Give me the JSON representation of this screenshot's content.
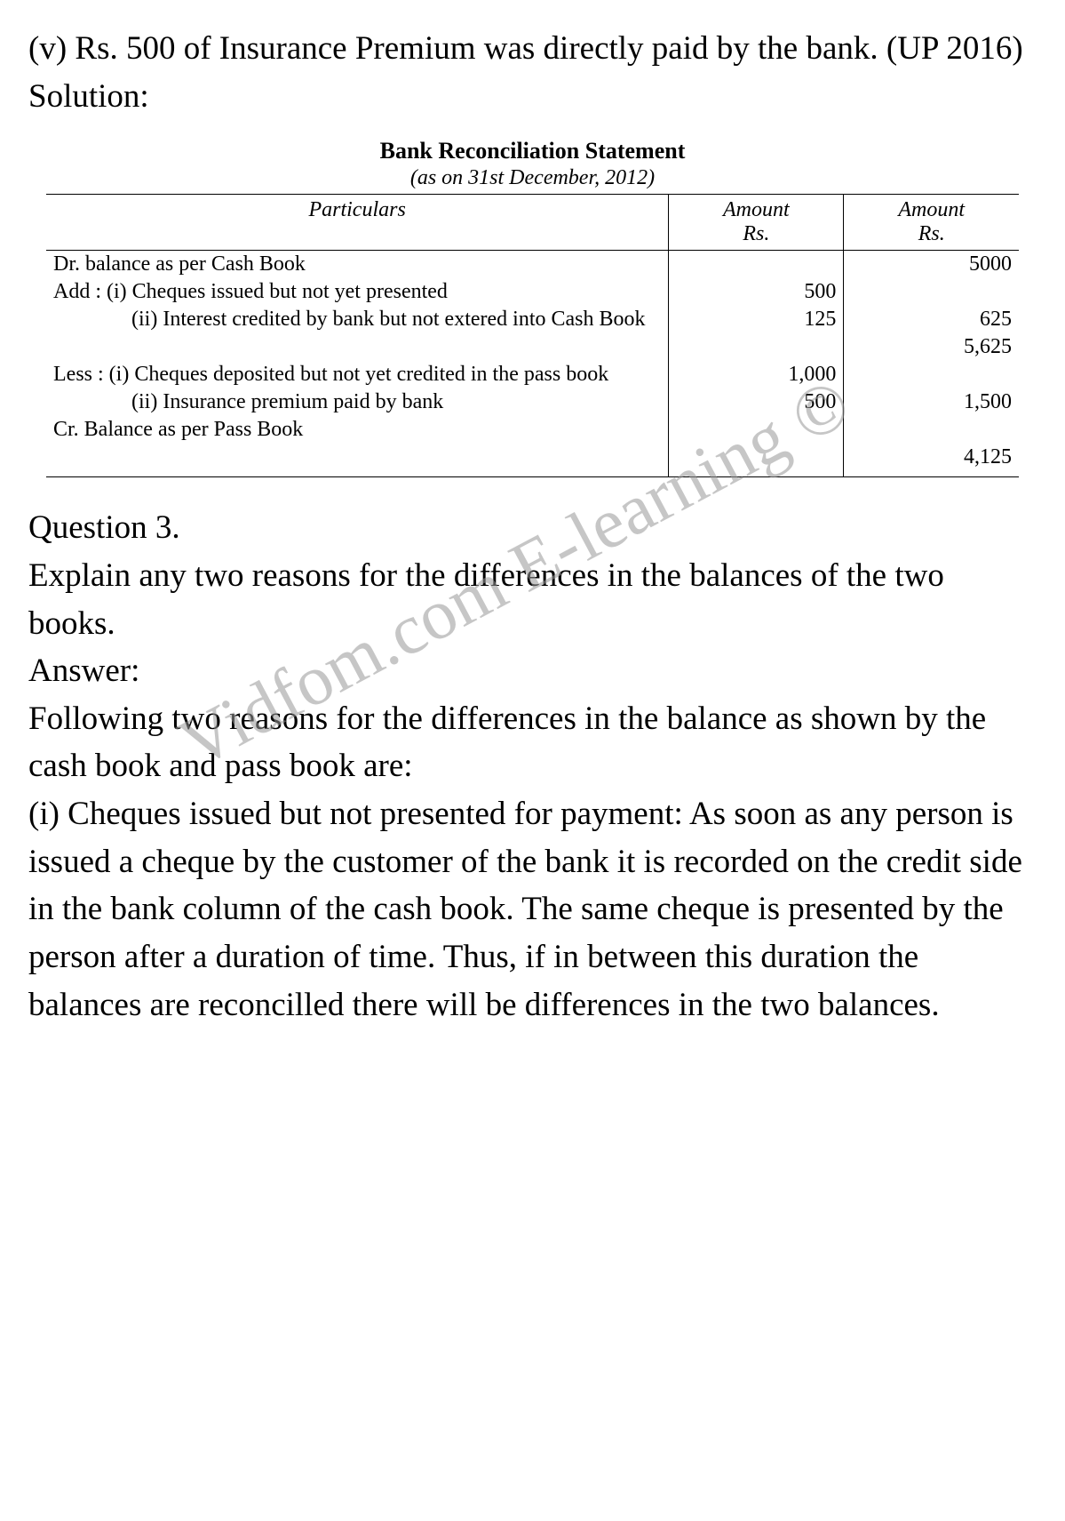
{
  "intro": {
    "item_v": "(v) Rs. 500 of Insurance Premium was directly paid by the bank. (UP 2016)",
    "solution_label": "Solution:"
  },
  "statement": {
    "title": "Bank Reconciliation Statement",
    "subtitle": "(as on 31st December, 2012)",
    "headers": {
      "particulars": "Particulars",
      "amount1_line1": "Amount",
      "amount1_line2": "Rs.",
      "amount2_line1": "Amount",
      "amount2_line2": "Rs."
    },
    "rows": [
      {
        "label": "Dr. balance as per Cash Book",
        "a1": "",
        "a2": "5000",
        "indent": 0
      },
      {
        "label": "Add :  (i) Cheques issued but not yet presented",
        "a1": "500",
        "a2": "",
        "indent": 0
      },
      {
        "label": "(ii) Interest credited by bank but not extered into Cash Book",
        "a1": "125",
        "a2": "625",
        "indent": 2
      },
      {
        "label": "",
        "a1": "",
        "a2": "5,625",
        "indent": 0
      },
      {
        "label": "Less :  (i) Cheques deposited but not yet credited in the pass book",
        "a1": "1,000",
        "a2": "",
        "indent": 0
      },
      {
        "label": "(ii) Insurance premium paid by bank",
        "a1": "500",
        "a2": "1,500",
        "indent": 2
      },
      {
        "label": "Cr. Balance as per Pass Book",
        "a1": "",
        "a2": "",
        "indent": 0
      },
      {
        "label": "",
        "a1": "",
        "a2": "4,125",
        "indent": 0
      }
    ]
  },
  "question3": {
    "heading": "Question 3.",
    "prompt": "Explain any two reasons for the differences in the balances of the two books.",
    "answer_label": "Answer:",
    "answer_intro": "Following two reasons for the differences in the balance as shown by the cash book and pass book are:",
    "reason_i": "(i) Cheques issued but not presented for payment: As soon as any person is issued a cheque by the customer of the bank it is recorded on the credit side in the bank column of the cash book. The same cheque is presented by the person after a duration of time. Thus, if in between this duration the balances are reconcilled there will be differences in the two balances."
  },
  "watermark": "Vidfom.com E-learning ©"
}
